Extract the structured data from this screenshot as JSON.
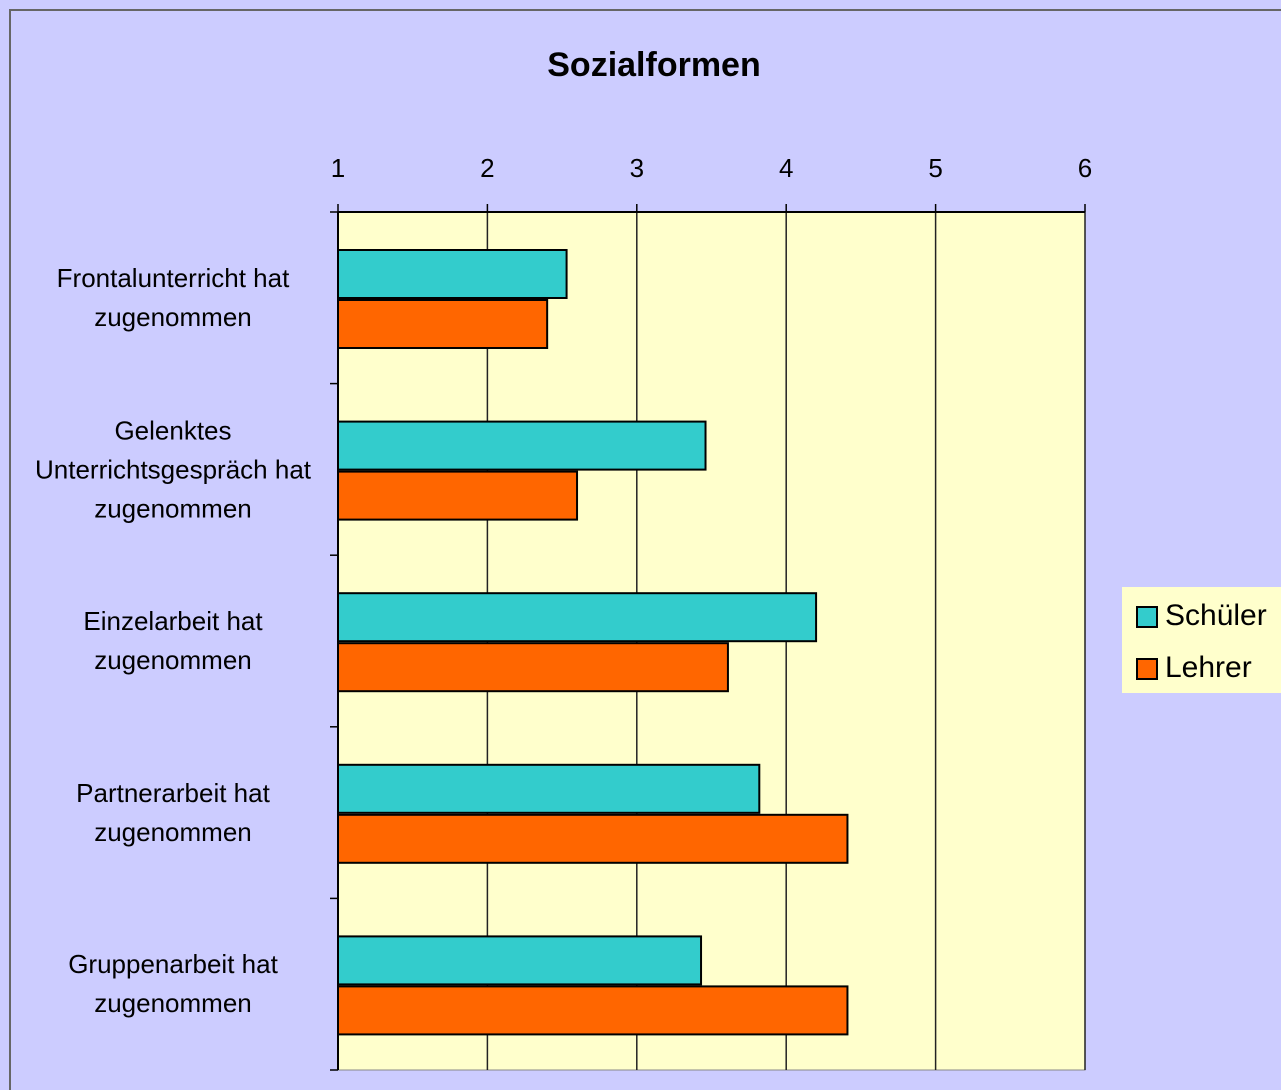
{
  "chart_data": {
    "type": "barh",
    "title": "Sozialformen",
    "categories": [
      "Frontalunterricht hat zugenommen",
      "Gelenktes Unterrichtsgespräch hat zugenommen",
      "Einzelarbeit hat zugenommen",
      "Partnerarbeit hat zugenommen",
      "Gruppenarbeit hat zugenommen"
    ],
    "series": [
      {
        "name": "Schüler",
        "color": "#33cccc",
        "values": [
          2.53,
          3.46,
          4.2,
          3.82,
          3.43
        ]
      },
      {
        "name": "Lehrer",
        "color": "#ff6600",
        "values": [
          2.4,
          2.6,
          3.61,
          4.41,
          4.41
        ]
      }
    ],
    "xlim": [
      1,
      6
    ],
    "xticks": [
      1,
      2,
      3,
      4,
      5,
      6
    ],
    "grid": true,
    "legend": "right"
  }
}
